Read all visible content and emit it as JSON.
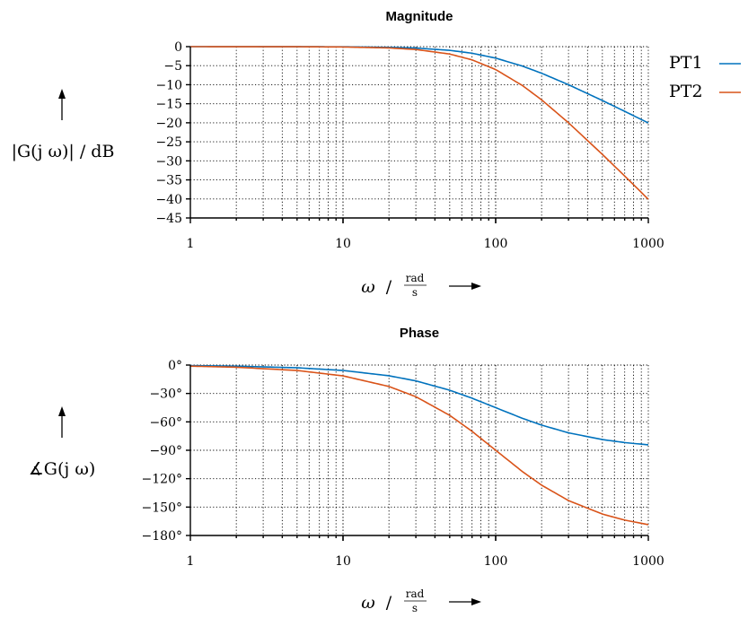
{
  "chart_data": [
    {
      "type": "line",
      "title": "Magnitude",
      "xscale": "log",
      "xlim": [
        1,
        1000
      ],
      "ylim": [
        -45,
        0
      ],
      "x_ticks": [
        1,
        10,
        100,
        1000
      ],
      "x_tick_labels": [
        "1",
        "10",
        "100",
        "1000"
      ],
      "y_ticks": [
        0,
        -5,
        -10,
        -15,
        -20,
        -25,
        -30,
        -35,
        -40,
        -45
      ],
      "y_tick_labels": [
        "0",
        "−5",
        "−10",
        "−15",
        "−20",
        "−25",
        "−30",
        "−35",
        "−40",
        "−45"
      ],
      "ylabel": "|G(j ω)|  / dB",
      "xlabel_symbol": "ω",
      "xlabel_sep": "/",
      "xlabel_unit_num": "rad",
      "xlabel_unit_den": "s",
      "grid": true,
      "legend_position": "right",
      "series": [
        {
          "name": "PT1",
          "color": "#0072bd",
          "x": [
            1,
            2,
            5,
            10,
            20,
            30,
            50,
            70,
            100,
            150,
            200,
            300,
            500,
            700,
            1000
          ],
          "y": [
            0,
            0,
            -0.01,
            -0.04,
            -0.17,
            -0.37,
            -0.97,
            -1.73,
            -3.01,
            -5.12,
            -6.99,
            -10.0,
            -14.15,
            -16.99,
            -20.04
          ]
        },
        {
          "name": "PT2",
          "color": "#d95319",
          "x": [
            1,
            2,
            5,
            10,
            20,
            30,
            50,
            70,
            100,
            150,
            200,
            300,
            500,
            700,
            1000
          ],
          "y": [
            0,
            -0.01,
            -0.02,
            -0.09,
            -0.34,
            -0.75,
            -1.94,
            -3.47,
            -6.02,
            -10.24,
            -13.98,
            -20.0,
            -28.3,
            -33.98,
            -40.09
          ]
        }
      ]
    },
    {
      "type": "line",
      "title": "Phase",
      "xscale": "log",
      "xlim": [
        1,
        1000
      ],
      "ylim": [
        -180,
        0
      ],
      "x_ticks": [
        1,
        10,
        100,
        1000
      ],
      "x_tick_labels": [
        "1",
        "10",
        "100",
        "1000"
      ],
      "y_ticks": [
        0,
        -30,
        -60,
        -90,
        -120,
        -150,
        -180
      ],
      "y_tick_labels": [
        "0°",
        "−30°",
        "−60°",
        "−90°",
        "−120°",
        "−150°",
        "−180°"
      ],
      "ylabel": "∡G(j ω)",
      "xlabel_symbol": "ω",
      "xlabel_sep": "/",
      "xlabel_unit_num": "rad",
      "xlabel_unit_den": "s",
      "grid": true,
      "series": [
        {
          "name": "PT1",
          "color": "#0072bd",
          "x": [
            1,
            2,
            5,
            10,
            20,
            30,
            50,
            70,
            100,
            150,
            200,
            300,
            500,
            700,
            1000
          ],
          "y": [
            -0.57,
            -1.15,
            -2.86,
            -5.71,
            -11.31,
            -16.7,
            -26.57,
            -34.99,
            -45.0,
            -56.31,
            -63.43,
            -71.57,
            -78.69,
            -81.87,
            -84.29
          ]
        },
        {
          "name": "PT2",
          "color": "#d95319",
          "x": [
            1,
            2,
            5,
            10,
            20,
            30,
            50,
            70,
            100,
            150,
            200,
            300,
            500,
            700,
            1000
          ],
          "y": [
            -1.15,
            -2.29,
            -5.72,
            -11.42,
            -22.62,
            -33.4,
            -53.13,
            -69.98,
            -90.0,
            -112.62,
            -126.87,
            -143.13,
            -157.38,
            -163.74,
            -168.58
          ]
        }
      ]
    }
  ]
}
